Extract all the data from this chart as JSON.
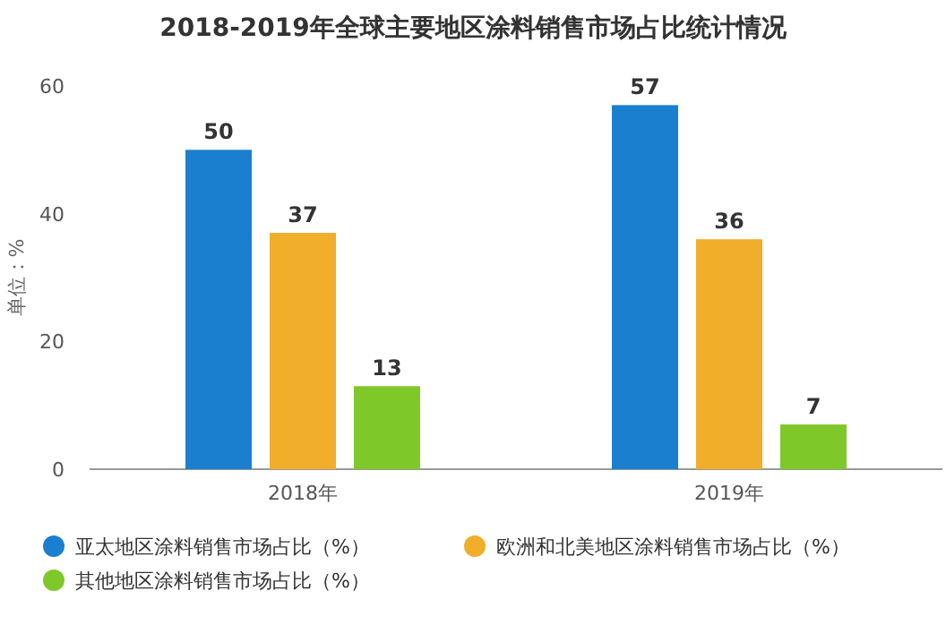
{
  "chart_data": {
    "type": "bar",
    "title": "2018-2019年全球主要地区涂料销售市场占比统计情况",
    "ylabel": "单位：%",
    "categories": [
      "2018年",
      "2019年"
    ],
    "series": [
      {
        "name": "亚太地区涂料销售市场占比（%）",
        "color": "#1a7fcf",
        "values": [
          50,
          57
        ]
      },
      {
        "name": "欧洲和北美地区涂料销售市场占比（%）",
        "color": "#f0ae2a",
        "values": [
          37,
          36
        ]
      },
      {
        "name": "其他地区涂料销售市场占比（%）",
        "color": "#7ec82a",
        "values": [
          13,
          7
        ]
      }
    ],
    "ylim": [
      0,
      60
    ],
    "yticks": [
      0,
      20,
      40,
      60
    ],
    "data_labels": true,
    "legend": "bottom",
    "grid": false
  }
}
